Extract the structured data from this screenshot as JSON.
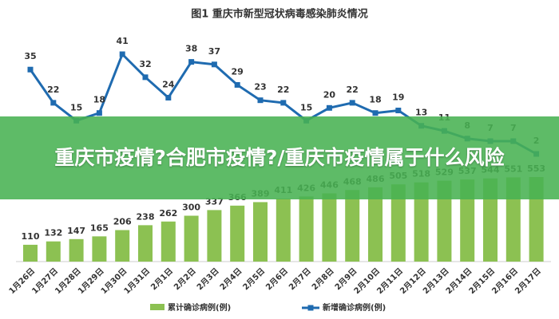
{
  "chart_data": {
    "type": "bar-line",
    "title": "图1   重庆市新型冠状病毒感染肺炎情况",
    "categories": [
      "1月26日",
      "1月27日",
      "1月28日",
      "1月29日",
      "1月30日",
      "1月31日",
      "2月1日",
      "2月2日",
      "2月3日",
      "2月4日",
      "2月5日",
      "2月6日",
      "2月7日",
      "2月8日",
      "2月9日",
      "2月10日",
      "2月11日",
      "2月12日",
      "2月13日",
      "2月14日",
      "2月15日",
      "2月16日",
      "2月17日"
    ],
    "series": [
      {
        "name": "累计确诊病例(例)",
        "type": "bar",
        "color": "#8cc152",
        "values": [
          110,
          132,
          147,
          165,
          206,
          238,
          262,
          300,
          337,
          366,
          389,
          411,
          426,
          446,
          468,
          486,
          505,
          518,
          529,
          537,
          544,
          551,
          553
        ]
      },
      {
        "name": "新增确诊病例(例)",
        "type": "line",
        "color": "#1f6bb0",
        "values": [
          35,
          22,
          15,
          18,
          41,
          32,
          24,
          38,
          37,
          29,
          23,
          22,
          15,
          20,
          22,
          18,
          19,
          13,
          11,
          8,
          7,
          7,
          2
        ]
      }
    ]
  },
  "banner": {
    "text": "重庆市疫情?合肥市疫情?/重庆市疫情属于什么风险"
  }
}
